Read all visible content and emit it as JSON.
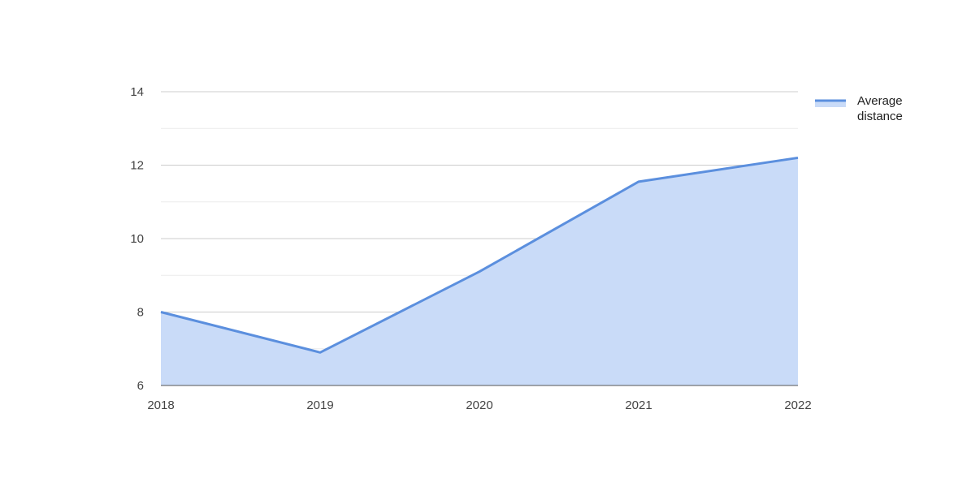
{
  "chart_data": {
    "type": "area",
    "title": "",
    "xlabel": "",
    "ylabel": "",
    "x": [
      "2018",
      "2019",
      "2020",
      "2021",
      "2022"
    ],
    "series": [
      {
        "name": "Average distance",
        "values": [
          8.0,
          6.9,
          9.1,
          11.55,
          12.2
        ]
      }
    ],
    "ylim": [
      6,
      14
    ],
    "yticks": [
      6,
      8,
      10,
      12,
      14
    ],
    "minor_gridlines": [
      7,
      9,
      11,
      13
    ],
    "grid": true,
    "legend": {
      "position": "right",
      "lines": [
        "Average",
        "distance"
      ]
    },
    "colors": {
      "line": "#5b8fde",
      "fill": "#c9dbf8",
      "major_grid": "#cccccc",
      "minor_grid": "#ececec"
    }
  }
}
